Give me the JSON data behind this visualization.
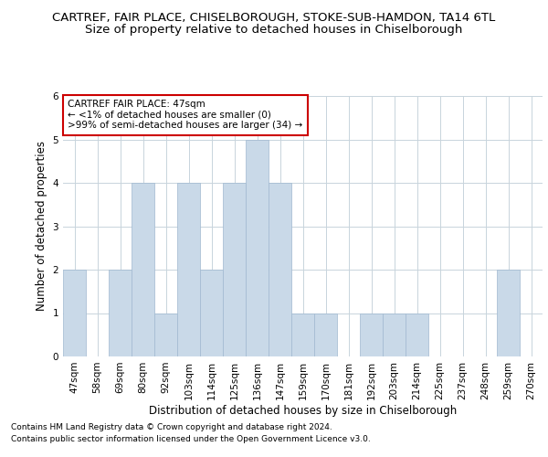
{
  "title1": "CARTREF, FAIR PLACE, CHISELBOROUGH, STOKE-SUB-HAMDON, TA14 6TL",
  "title2": "Size of property relative to detached houses in Chiselborough",
  "xlabel": "Distribution of detached houses by size in Chiselborough",
  "ylabel": "Number of detached properties",
  "categories": [
    "47sqm",
    "58sqm",
    "69sqm",
    "80sqm",
    "92sqm",
    "103sqm",
    "114sqm",
    "125sqm",
    "136sqm",
    "147sqm",
    "159sqm",
    "170sqm",
    "181sqm",
    "192sqm",
    "203sqm",
    "214sqm",
    "225sqm",
    "237sqm",
    "248sqm",
    "259sqm",
    "270sqm"
  ],
  "values": [
    2,
    0,
    2,
    4,
    1,
    4,
    2,
    4,
    5,
    4,
    1,
    1,
    0,
    1,
    1,
    1,
    0,
    0,
    0,
    2,
    0
  ],
  "bar_color": "#c9d9e8",
  "bar_edge_color": "#a0b8d0",
  "annotation_text": "CARTREF FAIR PLACE: 47sqm\n← <1% of detached houses are smaller (0)\n>99% of semi-detached houses are larger (34) →",
  "annotation_box_color": "#ffffff",
  "annotation_box_edge": "#cc0000",
  "ylim": [
    0,
    6
  ],
  "yticks": [
    0,
    1,
    2,
    3,
    4,
    5,
    6
  ],
  "footnote1": "Contains HM Land Registry data © Crown copyright and database right 2024.",
  "footnote2": "Contains public sector information licensed under the Open Government Licence v3.0.",
  "background_color": "#ffffff",
  "grid_color": "#c8d4dc",
  "title1_fontsize": 9.5,
  "title2_fontsize": 9.5,
  "axis_label_fontsize": 8.5,
  "tick_fontsize": 7.5,
  "annotation_fontsize": 7.5,
  "footnote_fontsize": 6.5
}
